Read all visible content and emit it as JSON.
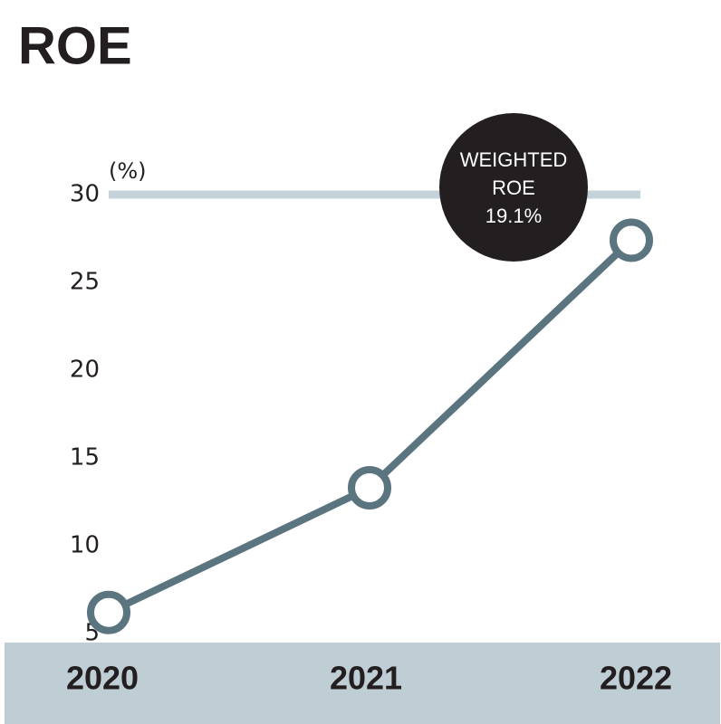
{
  "chart_data": {
    "type": "line",
    "title": "ROE",
    "y_unit": "(%)",
    "categories": [
      "2020",
      "2021",
      "2022"
    ],
    "series": [
      {
        "name": "ROE",
        "color": "#5b7580",
        "values": [
          6.2,
          13.3,
          27.4
        ]
      }
    ],
    "ylim": [
      5,
      30
    ],
    "yticks": [
      5,
      10,
      15,
      20,
      25,
      30
    ],
    "reference_line": 30,
    "reference_color": "#c4d2d9",
    "annotation": [
      "WEIGHTED",
      "ROE",
      "19.1%"
    ]
  }
}
